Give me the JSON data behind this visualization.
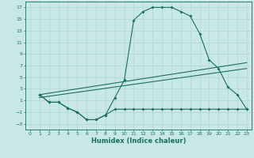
{
  "xlabel": "Humidex (Indice chaleur)",
  "bg_color": "#c8e8e8",
  "grid_color": "#b0d8d0",
  "line_color": "#1a6e60",
  "xlim": [
    -0.5,
    23.5
  ],
  "ylim": [
    -4,
    18
  ],
  "xticks": [
    0,
    1,
    2,
    3,
    4,
    5,
    6,
    7,
    8,
    9,
    10,
    11,
    12,
    13,
    14,
    15,
    16,
    17,
    18,
    19,
    20,
    21,
    22,
    23
  ],
  "yticks": [
    -3,
    -1,
    1,
    3,
    5,
    7,
    9,
    11,
    13,
    15,
    17
  ],
  "line1_x": [
    1,
    2,
    3,
    4,
    5,
    6,
    7,
    8,
    9,
    10,
    11,
    12,
    13,
    14,
    15,
    16,
    17,
    18,
    19,
    20,
    21,
    22,
    23
  ],
  "line1_y": [
    2.0,
    0.7,
    0.7,
    -0.3,
    -1.0,
    -2.3,
    -2.3,
    -1.5,
    1.5,
    4.5,
    14.8,
    16.3,
    17.0,
    17.0,
    17.0,
    16.3,
    15.5,
    12.5,
    8.0,
    6.5,
    3.3,
    2.0,
    -0.5
  ],
  "line2_x": [
    1,
    2,
    3,
    4,
    5,
    6,
    7,
    8,
    9,
    10,
    11,
    12,
    13,
    14,
    15,
    16,
    17,
    18,
    19,
    20,
    21,
    22,
    23
  ],
  "line2_y": [
    2.0,
    0.7,
    0.7,
    -0.3,
    -1.0,
    -2.3,
    -2.3,
    -1.5,
    -0.5,
    -0.5,
    -0.5,
    -0.5,
    -0.5,
    -0.5,
    -0.5,
    -0.5,
    -0.5,
    -0.5,
    -0.5,
    -0.5,
    -0.5,
    -0.5,
    -0.5
  ],
  "line3_x": [
    1,
    23
  ],
  "line3_y": [
    2.0,
    7.5
  ],
  "line4_x": [
    1,
    23
  ],
  "line4_y": [
    1.5,
    6.5
  ],
  "marker_size": 2.0,
  "line_width": 0.8,
  "tick_fontsize": 4.5,
  "xlabel_fontsize": 6.0
}
